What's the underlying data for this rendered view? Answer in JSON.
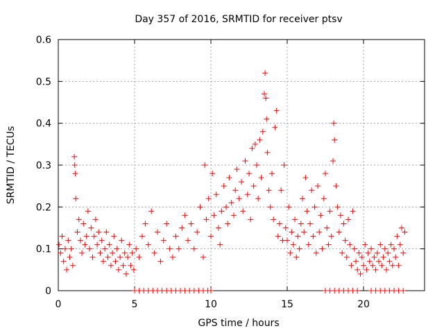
{
  "chart_data": {
    "type": "scatter",
    "title": "Day 357 of 2016, SRMTID for receiver ptsv",
    "xlabel": "GPS time / hours",
    "ylabel": "SRMTID / TECUs",
    "xlim": [
      0,
      24
    ],
    "ylim": [
      0,
      0.6
    ],
    "xticks": [
      0,
      5,
      10,
      15,
      20
    ],
    "xtick_labels": [
      "0",
      "5",
      "10",
      "15",
      "20"
    ],
    "yticks": [
      0,
      0.1,
      0.2,
      0.3,
      0.4,
      0.5,
      0.6
    ],
    "ytick_labels": [
      "0",
      "0.1",
      "0.2",
      "0.3",
      "0.4",
      "0.5",
      "0.6"
    ],
    "grid": true,
    "marker": "+",
    "series": [
      {
        "name": "ptsv",
        "color": "#ff0000",
        "points": [
          [
            0.05,
            0.11
          ],
          [
            0.15,
            0.09
          ],
          [
            0.25,
            0.13
          ],
          [
            0.35,
            0.07
          ],
          [
            0.45,
            0.1
          ],
          [
            0.55,
            0.05
          ],
          [
            0.65,
            0.12
          ],
          [
            0.75,
            0.08
          ],
          [
            0.85,
            0.1
          ],
          [
            0.95,
            0.06
          ],
          [
            1.05,
            0.32
          ],
          [
            1.08,
            0.3
          ],
          [
            1.12,
            0.28
          ],
          [
            1.15,
            0.22
          ],
          [
            1.25,
            0.14
          ],
          [
            1.35,
            0.17
          ],
          [
            1.45,
            0.12
          ],
          [
            1.55,
            0.09
          ],
          [
            1.65,
            0.16
          ],
          [
            1.75,
            0.11
          ],
          [
            1.85,
            0.13
          ],
          [
            1.95,
            0.19
          ],
          [
            2.05,
            0.1
          ],
          [
            2.15,
            0.15
          ],
          [
            2.25,
            0.08
          ],
          [
            2.35,
            0.13
          ],
          [
            2.45,
            0.17
          ],
          [
            2.55,
            0.11
          ],
          [
            2.65,
            0.14
          ],
          [
            2.75,
            0.09
          ],
          [
            2.85,
            0.12
          ],
          [
            2.95,
            0.07
          ],
          [
            3.05,
            0.1
          ],
          [
            3.15,
            0.14
          ],
          [
            3.25,
            0.08
          ],
          [
            3.35,
            0.11
          ],
          [
            3.45,
            0.06
          ],
          [
            3.55,
            0.09
          ],
          [
            3.65,
            0.13
          ],
          [
            3.75,
            0.07
          ],
          [
            3.85,
            0.1
          ],
          [
            3.95,
            0.05
          ],
          [
            4.05,
            0.08
          ],
          [
            4.15,
            0.12
          ],
          [
            4.25,
            0.06
          ],
          [
            4.35,
            0.09
          ],
          [
            4.45,
            0.04
          ],
          [
            4.55,
            0.08
          ],
          [
            4.65,
            0.11
          ],
          [
            4.75,
            0.06
          ],
          [
            4.85,
            0.09
          ],
          [
            4.95,
            0.05
          ],
          [
            5.1,
            0.1
          ],
          [
            5.3,
            0.08
          ],
          [
            5.5,
            0.13
          ],
          [
            5.7,
            0.16
          ],
          [
            5.9,
            0.11
          ],
          [
            6.1,
            0.19
          ],
          [
            6.3,
            0.09
          ],
          [
            6.5,
            0.14
          ],
          [
            6.7,
            0.07
          ],
          [
            6.9,
            0.12
          ],
          [
            7.1,
            0.16
          ],
          [
            7.3,
            0.1
          ],
          [
            7.5,
            0.08
          ],
          [
            7.7,
            0.13
          ],
          [
            7.9,
            0.1
          ],
          [
            8.1,
            0.15
          ],
          [
            8.3,
            0.18
          ],
          [
            8.5,
            0.12
          ],
          [
            8.7,
            0.16
          ],
          [
            8.9,
            0.1
          ],
          [
            9.1,
            0.14
          ],
          [
            9.3,
            0.2
          ],
          [
            9.5,
            0.08
          ],
          [
            9.6,
            0.3
          ],
          [
            9.7,
            0.17
          ],
          [
            9.85,
            0.22
          ],
          [
            10.0,
            0.13
          ],
          [
            10.1,
            0.28
          ],
          [
            10.2,
            0.18
          ],
          [
            10.35,
            0.23
          ],
          [
            10.5,
            0.15
          ],
          [
            10.6,
            0.11
          ],
          [
            10.7,
            0.19
          ],
          [
            10.85,
            0.25
          ],
          [
            11.0,
            0.2
          ],
          [
            11.1,
            0.16
          ],
          [
            11.2,
            0.27
          ],
          [
            11.35,
            0.21
          ],
          [
            11.5,
            0.18
          ],
          [
            11.6,
            0.24
          ],
          [
            11.7,
            0.29
          ],
          [
            11.85,
            0.22
          ],
          [
            12.0,
            0.26
          ],
          [
            12.1,
            0.19
          ],
          [
            12.25,
            0.31
          ],
          [
            12.4,
            0.23
          ],
          [
            12.5,
            0.28
          ],
          [
            12.6,
            0.17
          ],
          [
            12.7,
            0.34
          ],
          [
            12.8,
            0.25
          ],
          [
            12.9,
            0.35
          ],
          [
            13.0,
            0.3
          ],
          [
            13.1,
            0.22
          ],
          [
            13.2,
            0.36
          ],
          [
            13.3,
            0.27
          ],
          [
            13.4,
            0.38
          ],
          [
            13.5,
            0.47
          ],
          [
            13.55,
            0.52
          ],
          [
            13.6,
            0.46
          ],
          [
            13.65,
            0.41
          ],
          [
            13.7,
            0.33
          ],
          [
            13.8,
            0.24
          ],
          [
            13.9,
            0.2
          ],
          [
            14.0,
            0.28
          ],
          [
            14.1,
            0.17
          ],
          [
            14.2,
            0.39
          ],
          [
            14.3,
            0.43
          ],
          [
            14.4,
            0.13
          ],
          [
            14.5,
            0.16
          ],
          [
            14.6,
            0.24
          ],
          [
            14.7,
            0.12
          ],
          [
            14.8,
            0.3
          ],
          [
            14.9,
            0.15
          ],
          [
            15.0,
            0.12
          ],
          [
            15.1,
            0.2
          ],
          [
            15.2,
            0.09
          ],
          [
            15.3,
            0.14
          ],
          [
            15.4,
            0.11
          ],
          [
            15.5,
            0.17
          ],
          [
            15.6,
            0.08
          ],
          [
            15.7,
            0.13
          ],
          [
            15.8,
            0.1
          ],
          [
            15.9,
            0.16
          ],
          [
            16.0,
            0.22
          ],
          [
            16.1,
            0.14
          ],
          [
            16.2,
            0.27
          ],
          [
            16.3,
            0.19
          ],
          [
            16.4,
            0.11
          ],
          [
            16.5,
            0.16
          ],
          [
            16.6,
            0.24
          ],
          [
            16.7,
            0.13
          ],
          [
            16.8,
            0.2
          ],
          [
            16.9,
            0.09
          ],
          [
            17.0,
            0.25
          ],
          [
            17.1,
            0.14
          ],
          [
            17.2,
            0.18
          ],
          [
            17.3,
            0.1
          ],
          [
            17.4,
            0.22
          ],
          [
            17.5,
            0.28
          ],
          [
            17.6,
            0.15
          ],
          [
            17.7,
            0.11
          ],
          [
            17.8,
            0.19
          ],
          [
            17.9,
            0.13
          ],
          [
            18.0,
            0.31
          ],
          [
            18.05,
            0.4
          ],
          [
            18.1,
            0.36
          ],
          [
            18.2,
            0.25
          ],
          [
            18.3,
            0.2
          ],
          [
            18.4,
            0.14
          ],
          [
            18.5,
            0.18
          ],
          [
            18.6,
            0.09
          ],
          [
            18.7,
            0.16
          ],
          [
            18.8,
            0.12
          ],
          [
            18.9,
            0.08
          ],
          [
            19.0,
            0.17
          ],
          [
            19.1,
            0.11
          ],
          [
            19.2,
            0.06
          ],
          [
            19.3,
            0.19
          ],
          [
            19.4,
            0.1
          ],
          [
            19.5,
            0.07
          ],
          [
            19.6,
            0.05
          ],
          [
            19.7,
            0.09
          ],
          [
            19.8,
            0.04
          ],
          [
            19.9,
            0.08
          ],
          [
            20.0,
            0.06
          ],
          [
            20.1,
            0.11
          ],
          [
            20.2,
            0.05
          ],
          [
            20.3,
            0.09
          ],
          [
            20.4,
            0.07
          ],
          [
            20.5,
            0.1
          ],
          [
            20.6,
            0.06
          ],
          [
            20.7,
            0.08
          ],
          [
            20.8,
            0.05
          ],
          [
            20.9,
            0.09
          ],
          [
            21.0,
            0.07
          ],
          [
            21.1,
            0.11
          ],
          [
            21.2,
            0.06
          ],
          [
            21.3,
            0.08
          ],
          [
            21.4,
            0.1
          ],
          [
            21.5,
            0.05
          ],
          [
            21.6,
            0.09
          ],
          [
            21.7,
            0.07
          ],
          [
            21.8,
            0.11
          ],
          [
            21.9,
            0.06
          ],
          [
            22.0,
            0.1
          ],
          [
            22.1,
            0.08
          ],
          [
            22.2,
            0.13
          ],
          [
            22.3,
            0.06
          ],
          [
            22.4,
            0.11
          ],
          [
            22.5,
            0.15
          ],
          [
            22.6,
            0.09
          ],
          [
            22.7,
            0.14
          ],
          [
            5.0,
            0.0
          ],
          [
            5.3,
            0.0
          ],
          [
            5.6,
            0.0
          ],
          [
            5.9,
            0.0
          ],
          [
            6.2,
            0.0
          ],
          [
            6.5,
            0.0
          ],
          [
            6.8,
            0.0
          ],
          [
            7.1,
            0.0
          ],
          [
            7.4,
            0.0
          ],
          [
            7.7,
            0.0
          ],
          [
            8.0,
            0.0
          ],
          [
            8.3,
            0.0
          ],
          [
            8.6,
            0.0
          ],
          [
            8.9,
            0.0
          ],
          [
            9.2,
            0.0
          ],
          [
            9.5,
            0.0
          ],
          [
            9.8,
            0.0
          ],
          [
            10.0,
            0.0
          ],
          [
            17.5,
            0.0
          ],
          [
            17.8,
            0.0
          ],
          [
            18.1,
            0.0
          ],
          [
            18.4,
            0.0
          ],
          [
            18.7,
            0.0
          ],
          [
            19.0,
            0.0
          ],
          [
            19.3,
            0.0
          ],
          [
            19.6,
            0.0
          ],
          [
            20.5,
            0.0
          ],
          [
            20.8,
            0.0
          ],
          [
            21.1,
            0.0
          ],
          [
            21.4,
            0.0
          ],
          [
            21.7,
            0.0
          ],
          [
            22.0,
            0.0
          ],
          [
            22.3,
            0.0
          ],
          [
            22.6,
            0.0
          ]
        ]
      }
    ]
  }
}
